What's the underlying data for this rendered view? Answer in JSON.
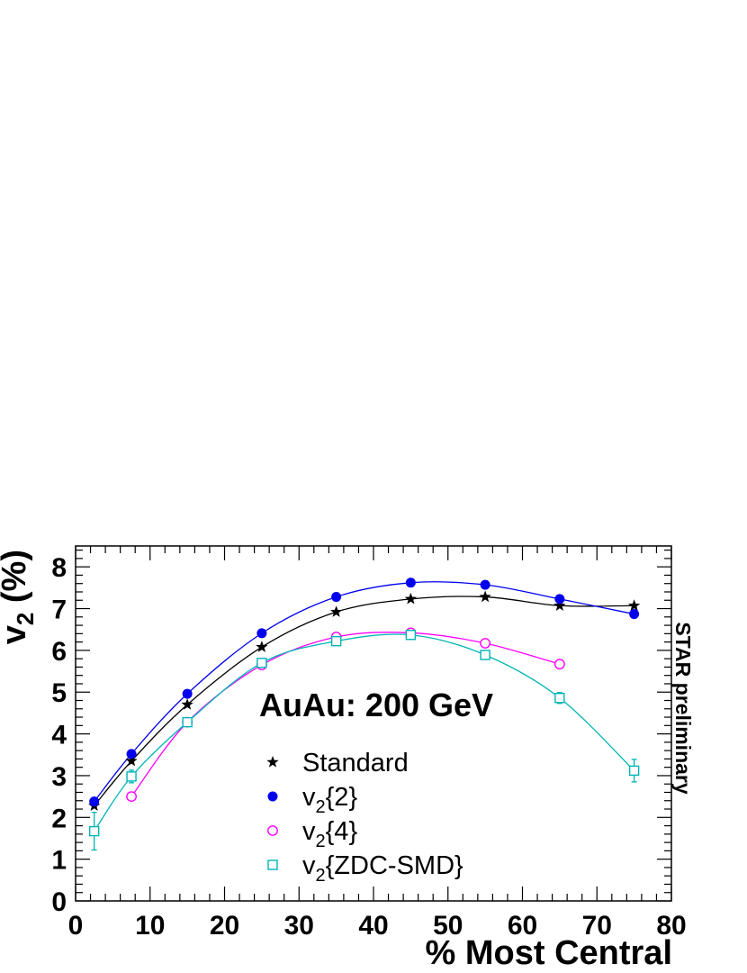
{
  "chart_data": {
    "type": "scatter",
    "title": "",
    "annotation": "AuAu: 200 GeV",
    "side_label": "STAR preliminary",
    "xlabel": "% Most Central",
    "ylabel_main": "v",
    "ylabel_sub": "2",
    "ylabel_tail": " (%)",
    "xlim": [
      0,
      80
    ],
    "ylim": [
      0,
      8.5
    ],
    "xticks": [
      "0",
      "10",
      "20",
      "30",
      "40",
      "50",
      "60",
      "70",
      "80"
    ],
    "yticks": [
      "0",
      "1",
      "2",
      "3",
      "4",
      "5",
      "6",
      "7",
      "8"
    ],
    "grid": false,
    "legend_position": "center-bottom",
    "series": [
      {
        "name": "Standard",
        "marker": "star",
        "color": "#000000",
        "x": [
          2.5,
          7.5,
          15,
          25,
          35,
          45,
          55,
          65,
          75
        ],
        "y": [
          2.28,
          3.35,
          4.7,
          6.08,
          6.92,
          7.23,
          7.28,
          7.07,
          7.07
        ],
        "err": [
          0,
          0,
          0,
          0,
          0,
          0,
          0,
          0,
          0
        ]
      },
      {
        "name": "{2}",
        "name_prefix": "v",
        "name_sub": "2",
        "marker": "filled-circle",
        "color": "#0000ee",
        "x": [
          2.5,
          7.5,
          15,
          25,
          35,
          45,
          55,
          65,
          75
        ],
        "y": [
          2.38,
          3.52,
          4.96,
          6.41,
          7.28,
          7.62,
          7.57,
          7.23,
          6.87
        ],
        "err": [
          0,
          0,
          0,
          0,
          0,
          0,
          0,
          0,
          0
        ]
      },
      {
        "name": "{4}",
        "name_prefix": "v",
        "name_sub": "2",
        "marker": "open-circle",
        "color": "#ff00ff",
        "x": [
          7.5,
          15,
          25,
          35,
          45,
          55,
          65
        ],
        "y": [
          2.5,
          4.28,
          5.65,
          6.32,
          6.42,
          6.17,
          5.67
        ],
        "err": [
          0,
          0,
          0,
          0,
          0,
          0,
          0
        ]
      },
      {
        "name": "{ZDC-SMD}",
        "name_prefix": "v",
        "name_sub": "2",
        "marker": "open-square",
        "color": "#00b5b5",
        "x": [
          2.5,
          7.5,
          15,
          25,
          35,
          45,
          55,
          65,
          75
        ],
        "y": [
          1.67,
          2.98,
          4.28,
          5.7,
          6.22,
          6.37,
          5.89,
          4.86,
          3.12
        ],
        "err": [
          0.45,
          0.15,
          0.1,
          0.08,
          0.07,
          0.07,
          0.09,
          0.13,
          0.27
        ]
      }
    ]
  }
}
